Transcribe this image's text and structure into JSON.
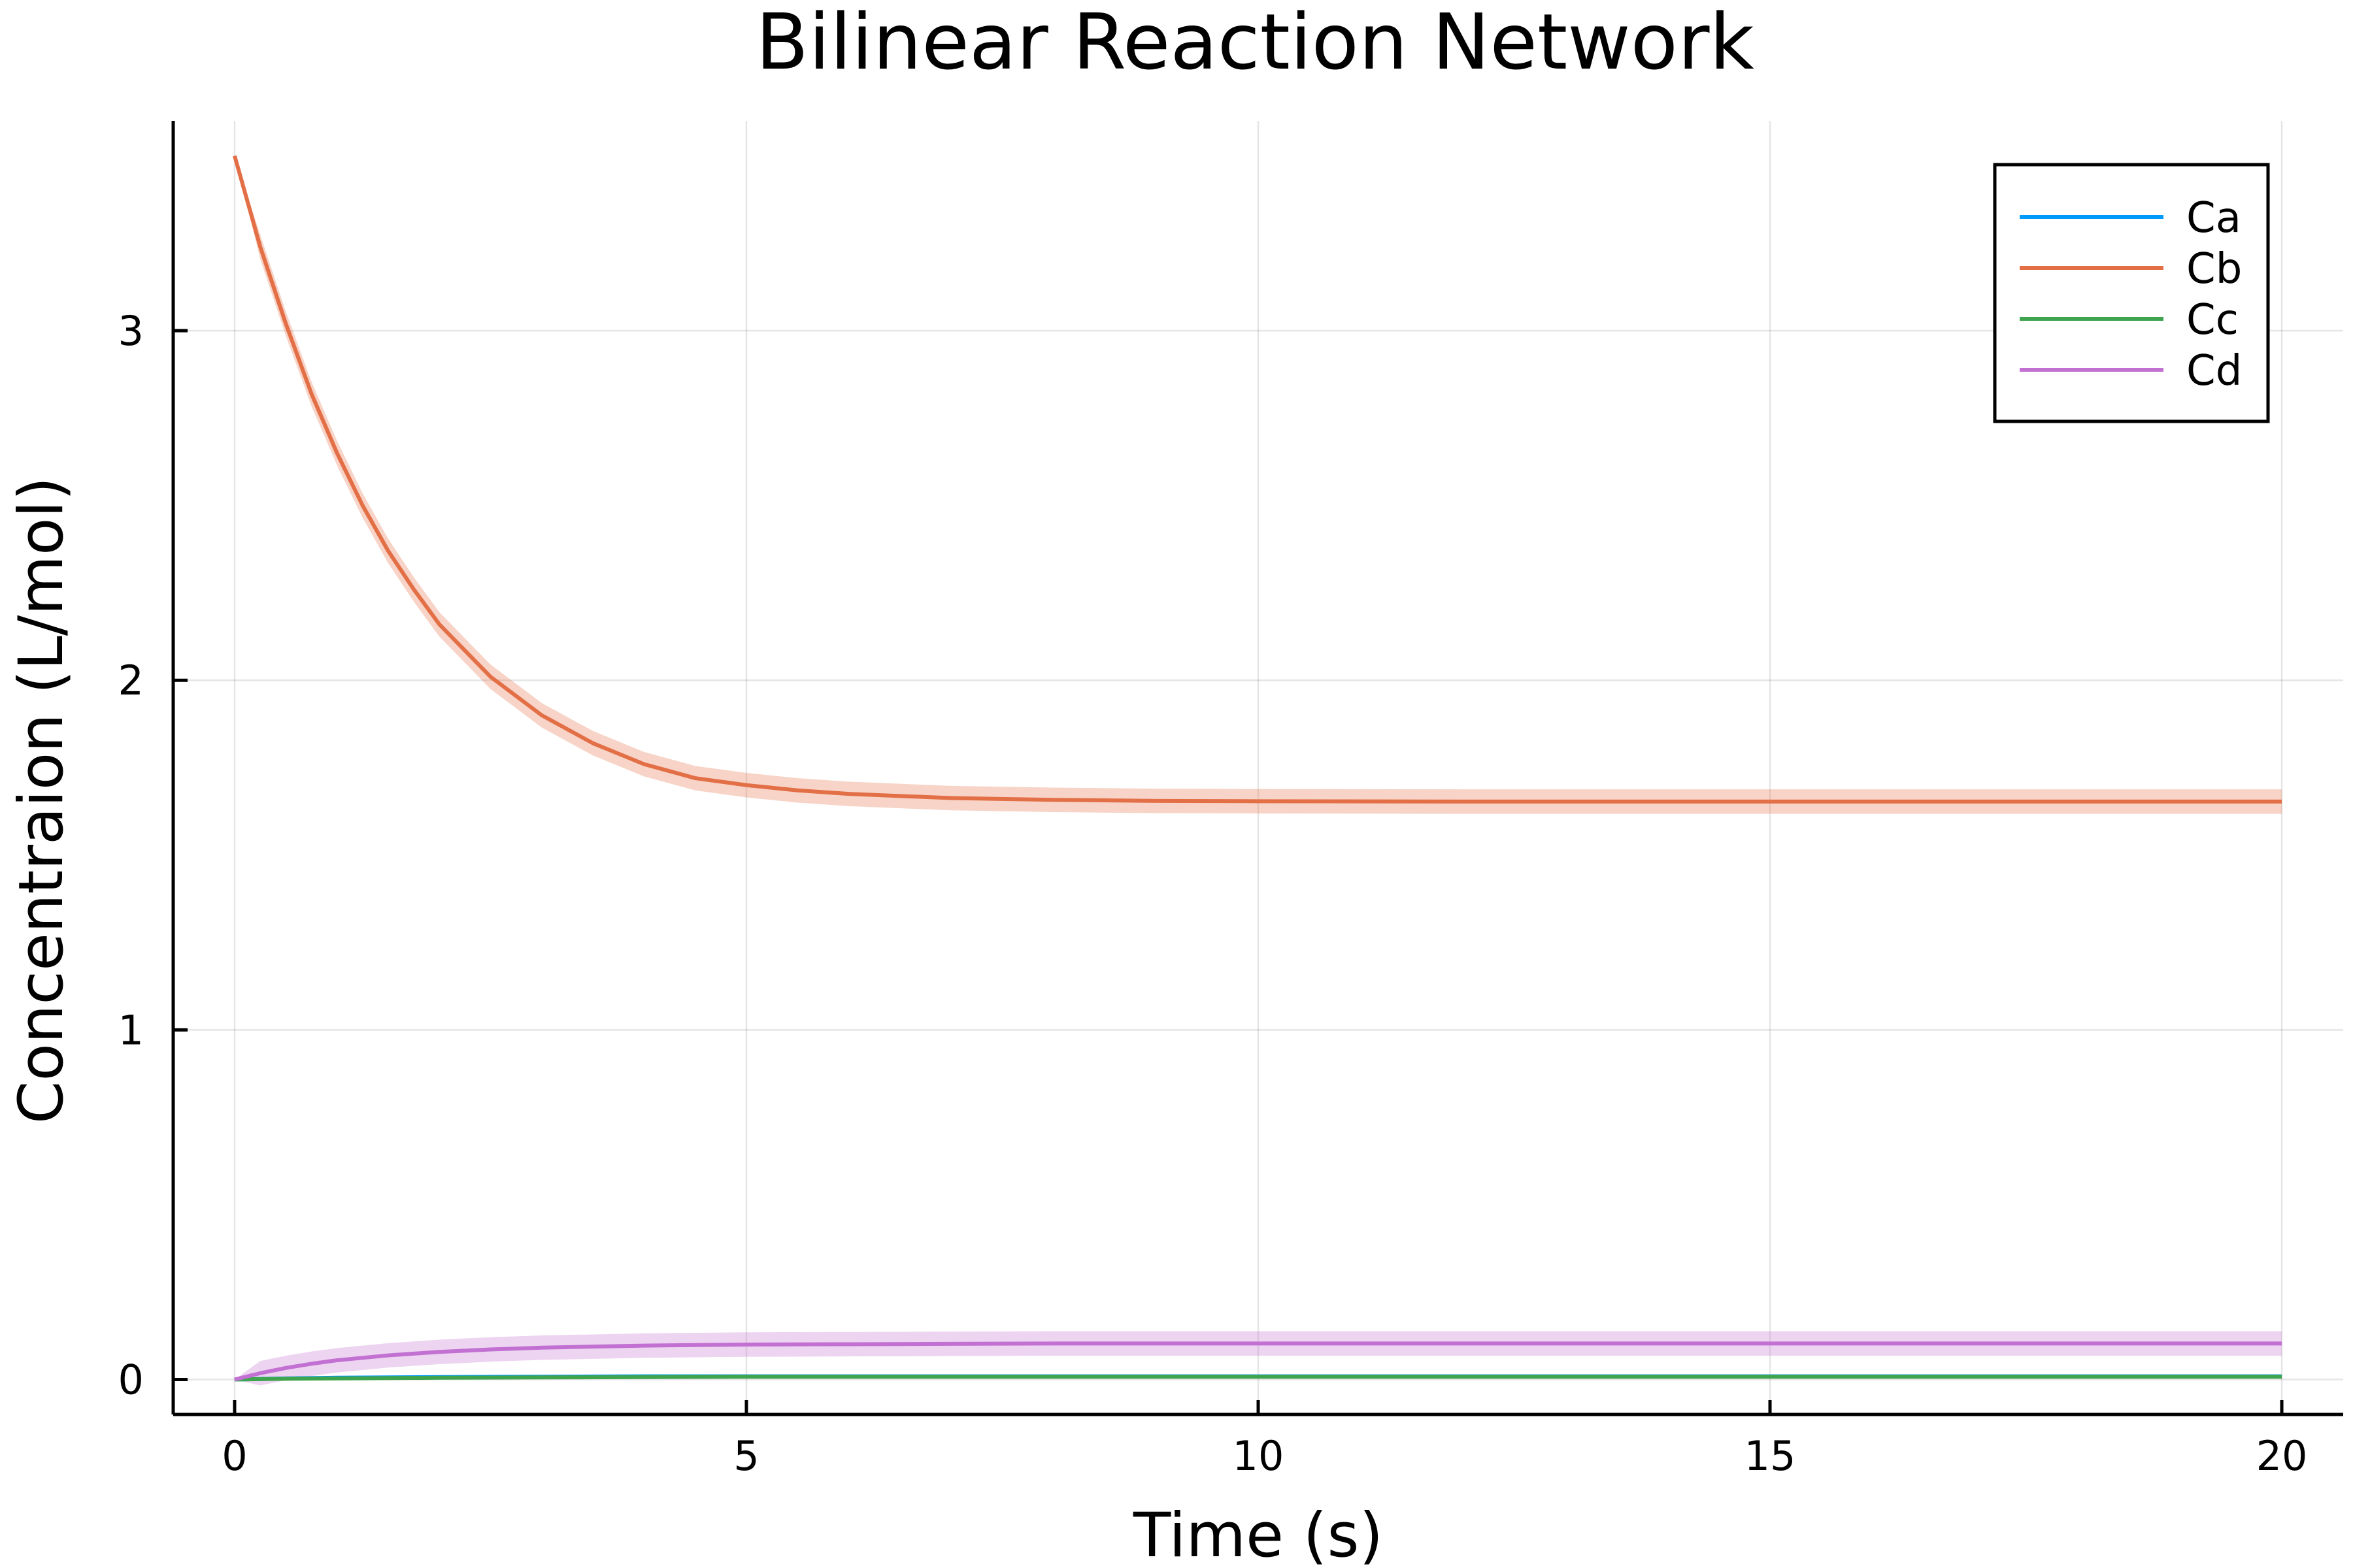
{
  "chart_data": {
    "type": "line",
    "title": "Bilinear Reaction Network",
    "xlabel": "Time (s)",
    "ylabel": "Concentraion (L/mol)",
    "xlim": [
      -0.6,
      20.6
    ],
    "ylim": [
      -0.1,
      3.6
    ],
    "xticks": [
      0,
      5,
      10,
      15,
      20
    ],
    "yticks": [
      0,
      1,
      2,
      3
    ],
    "grid": true,
    "legend_position": "top-right",
    "series": [
      {
        "name": "Ca",
        "color": "#009AFA",
        "x": [
          0,
          0.5,
          1,
          2,
          3,
          4,
          5,
          6,
          8,
          10,
          12,
          14,
          16,
          18,
          20
        ],
        "y": [
          0,
          0.003,
          0.005,
          0.007,
          0.008,
          0.009,
          0.009,
          0.009,
          0.009,
          0.009,
          0.009,
          0.009,
          0.009,
          0.009,
          0.009
        ],
        "band": 0.003
      },
      {
        "name": "Cb",
        "color": "#E36F47",
        "x": [
          0,
          0.25,
          0.5,
          0.75,
          1,
          1.25,
          1.5,
          1.75,
          2,
          2.5,
          3,
          3.5,
          4,
          4.5,
          5,
          5.5,
          6,
          7,
          8,
          9,
          10,
          12,
          14,
          16,
          18,
          20
        ],
        "y": [
          3.5,
          3.24,
          3.02,
          2.82,
          2.65,
          2.5,
          2.37,
          2.26,
          2.16,
          2.01,
          1.9,
          1.82,
          1.76,
          1.72,
          1.7,
          1.685,
          1.675,
          1.663,
          1.658,
          1.655,
          1.654,
          1.653,
          1.653,
          1.653,
          1.653,
          1.653
        ],
        "band": 0.035
      },
      {
        "name": "Cc",
        "color": "#3EA44E",
        "x": [
          0,
          0.5,
          1,
          2,
          3,
          4,
          5,
          6,
          8,
          10,
          12,
          14,
          16,
          18,
          20
        ],
        "y": [
          0,
          0.002,
          0.003,
          0.005,
          0.006,
          0.007,
          0.008,
          0.008,
          0.008,
          0.008,
          0.008,
          0.008,
          0.008,
          0.008,
          0.008
        ],
        "band": 0.003
      },
      {
        "name": "Cd",
        "color": "#C271D2",
        "x": [
          0,
          0.25,
          0.5,
          0.75,
          1,
          1.5,
          2,
          2.5,
          3,
          3.5,
          4,
          5,
          6,
          7,
          8,
          10,
          12,
          14,
          16,
          18,
          20
        ],
        "y": [
          0,
          0.018,
          0.033,
          0.045,
          0.055,
          0.069,
          0.079,
          0.086,
          0.091,
          0.094,
          0.097,
          0.1,
          0.101,
          0.102,
          0.103,
          0.103,
          0.103,
          0.103,
          0.103,
          0.103,
          0.103
        ],
        "band": 0.035
      }
    ]
  }
}
